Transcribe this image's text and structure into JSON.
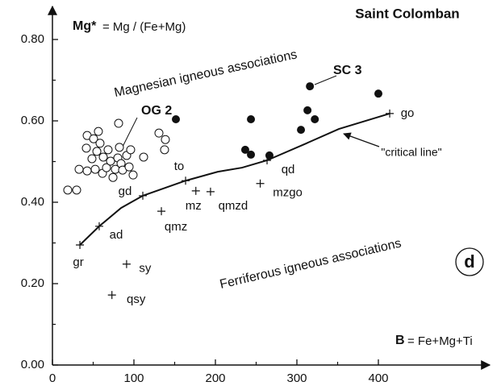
{
  "chart_data": {
    "type": "scatter",
    "title": "Saint Colomban",
    "y_label_symbol": "Mg*",
    "y_label_formula": "= Mg / (Fe+Mg)",
    "x_label_symbol": "B",
    "x_label_formula": "= Fe+Mg+Ti",
    "panel_label": "d",
    "annotations": [
      "Magnesian igneous associations",
      "Ferriferous igneous associations",
      "\"critical line\""
    ],
    "xlim": [
      0,
      530
    ],
    "ylim": [
      0,
      0.87
    ],
    "xticks": [
      0,
      100,
      200,
      300,
      400
    ],
    "xminorticks": [
      50,
      150,
      250,
      350
    ],
    "yticks": [
      {
        "value": 0,
        "label": "0.00"
      },
      {
        "value": 0.2,
        "label": "0.20"
      },
      {
        "value": 0.4,
        "label": "0.40"
      },
      {
        "value": 0.6,
        "label": "0.60"
      },
      {
        "value": 0.8,
        "label": "0.80"
      }
    ],
    "yminorticks": [
      0.1,
      0.3,
      0.5,
      0.7
    ],
    "color": "#111111",
    "series": [
      {
        "name": "OG 2",
        "marker": "open",
        "x": [
          18.8,
          29.7,
          32.7,
          42.6,
          41.6,
          42.6,
          50.5,
          48.5,
          54.5,
          52.5,
          56.4,
          58.4,
          62.4,
          61.4,
          66.3,
          68.3,
          71.3,
          74.3,
          77.2,
          80.2,
          82.2,
          84.2,
          86.1,
          91.1,
          94.1,
          99.0,
          96.0,
          111.9,
          130.7,
          138.6,
          137.6,
          81.2
        ],
        "values": [
          0.43,
          0.43,
          0.481,
          0.477,
          0.533,
          0.564,
          0.556,
          0.507,
          0.525,
          0.481,
          0.574,
          0.545,
          0.511,
          0.471,
          0.485,
          0.529,
          0.501,
          0.461,
          0.481,
          0.509,
          0.535,
          0.495,
          0.479,
          0.515,
          0.487,
          0.467,
          0.529,
          0.511,
          0.57,
          0.554,
          0.529,
          0.594
        ]
      },
      {
        "name": "SC 3",
        "marker": "filled",
        "x": [
          151.5,
          243.6,
          236.6,
          243.6,
          266.3,
          305,
          313,
          316,
          322,
          400
        ],
        "values": [
          0.604,
          0.604,
          0.529,
          0.517,
          0.515,
          0.578,
          0.626,
          0.685,
          0.604,
          0.667
        ]
      }
    ],
    "reference_points": {
      "labels": [
        "gr",
        "ad",
        "gd",
        "to",
        "mz",
        "qmz",
        "qmzd",
        "qd",
        "mzgo",
        "go",
        "sy",
        "qsy"
      ],
      "x": [
        33.7,
        57.4,
        110.9,
        163.4,
        176,
        133.7,
        194,
        263.4,
        255,
        413.9,
        91,
        73
      ],
      "values": [
        0.295,
        0.341,
        0.416,
        0.453,
        0.428,
        0.378,
        0.426,
        0.503,
        0.446,
        0.618,
        0.248,
        0.172
      ]
    },
    "critical_line": {
      "x": [
        33.7,
        57.4,
        84.2,
        110.9,
        163.4,
        203,
        232.7,
        263.4,
        311.9,
        351.5,
        413.9
      ],
      "values": [
        0.295,
        0.341,
        0.386,
        0.416,
        0.453,
        0.475,
        0.485,
        0.503,
        0.545,
        0.58,
        0.618
      ]
    }
  }
}
